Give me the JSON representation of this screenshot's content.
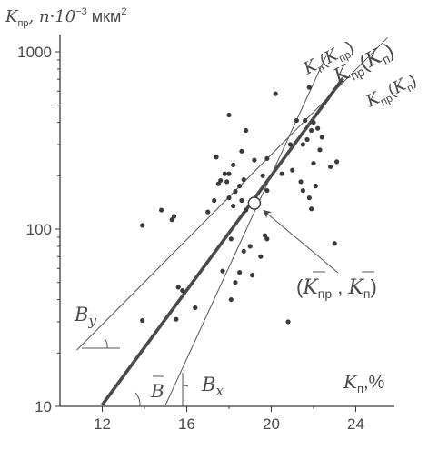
{
  "chart_data": {
    "type": "scatter",
    "xlabel": {
      "sym": "K",
      "sub": "п",
      "unit": ",%"
    },
    "ylabel": {
      "sym": "K",
      "sub": "пр",
      "mid": ", n·10",
      "exp": "−3",
      "unit": " мкм",
      "unit_exp": "2"
    },
    "x_scale": "linear",
    "y_scale": "log",
    "xlim": [
      10,
      26
    ],
    "ylim": [
      10,
      1000
    ],
    "x_ticks": [
      12,
      16,
      20,
      24
    ],
    "y_ticks": [
      10,
      100,
      1000
    ],
    "grid": false,
    "points": [
      [
        13.9,
        105
      ],
      [
        14.8,
        128
      ],
      [
        15.3,
        113
      ],
      [
        15.4,
        118
      ],
      [
        13.9,
        30.5
      ],
      [
        15.6,
        47
      ],
      [
        15.8,
        45
      ],
      [
        15.5,
        31
      ],
      [
        16.4,
        36
      ],
      [
        17.7,
        58
      ],
      [
        18.1,
        40
      ],
      [
        18.3,
        50
      ],
      [
        18.5,
        57
      ],
      [
        18.7,
        75
      ],
      [
        19.1,
        55
      ],
      [
        19.5,
        70
      ],
      [
        19.7,
        92
      ],
      [
        19.8,
        88
      ],
      [
        20.8,
        30
      ],
      [
        23.0,
        83
      ],
      [
        19.0,
        80
      ],
      [
        18.1,
        88
      ],
      [
        17.0,
        125
      ],
      [
        17.3,
        145
      ],
      [
        17.5,
        180
      ],
      [
        17.8,
        205
      ],
      [
        17.9,
        185
      ],
      [
        18.0,
        150
      ],
      [
        18.2,
        135
      ],
      [
        18.3,
        163
      ],
      [
        18.5,
        175
      ],
      [
        18.6,
        145
      ],
      [
        18.8,
        128
      ],
      [
        17.4,
        255
      ],
      [
        17.6,
        188
      ],
      [
        18.0,
        205
      ],
      [
        18.2,
        230
      ],
      [
        18.6,
        275
      ],
      [
        18.7,
        190
      ],
      [
        19.2,
        245
      ],
      [
        19.6,
        200
      ],
      [
        19.8,
        165
      ],
      [
        20.5,
        205
      ],
      [
        21.0,
        215
      ],
      [
        21.4,
        185
      ],
      [
        21.5,
        165
      ],
      [
        21.8,
        150
      ],
      [
        21.9,
        130
      ],
      [
        22.1,
        175
      ],
      [
        21.5,
        300
      ],
      [
        21.7,
        320
      ],
      [
        21.9,
        360
      ],
      [
        22.0,
        400
      ],
      [
        21.6,
        410
      ],
      [
        22.2,
        370
      ],
      [
        22.4,
        330
      ],
      [
        22.3,
        280
      ],
      [
        22.8,
        225
      ],
      [
        23.1,
        240
      ],
      [
        22.0,
        235
      ],
      [
        20.2,
        580
      ],
      [
        21.8,
        630
      ],
      [
        18.0,
        440
      ],
      [
        18.8,
        360
      ],
      [
        19.8,
        250
      ],
      [
        20.9,
        300
      ],
      [
        21.2,
        410
      ]
    ],
    "mean_point": {
      "x": 19.2,
      "y": 140
    },
    "lines": [
      {
        "name": "Kпр(Kп)",
        "parts": [
          "K",
          "пр",
          "(",
          "K",
          "п",
          ")"
        ],
        "from": [
          10.8,
          20.8
        ],
        "to": [
          25.5,
          1200
        ]
      },
      {
        "name": "Kпр(Kп)",
        "parts": [
          "K",
          "пр",
          "(",
          "K",
          "п",
          ")"
        ],
        "emphasis": "bold",
        "from": [
          12.0,
          10.2
        ],
        "to": [
          23.4,
          710
        ]
      },
      {
        "name": "Kп(Kпр)",
        "parts": [
          "K",
          "п",
          "(",
          "K",
          "пр",
          ")"
        ],
        "from": [
          15.0,
          10.2
        ],
        "to": [
          22.6,
          950
        ]
      }
    ],
    "annotations": {
      "mean_label": {
        "open": "(",
        "a_sym": "K",
        "a_sub": "пр",
        "sep": " , ",
        "b_sym": "K",
        "b_sub": "п",
        "close": ")"
      },
      "By": {
        "sym": "B",
        "sub": "y"
      },
      "B": {
        "sym": "B"
      },
      "Bx": {
        "sym": "B",
        "sub": "x"
      }
    }
  }
}
